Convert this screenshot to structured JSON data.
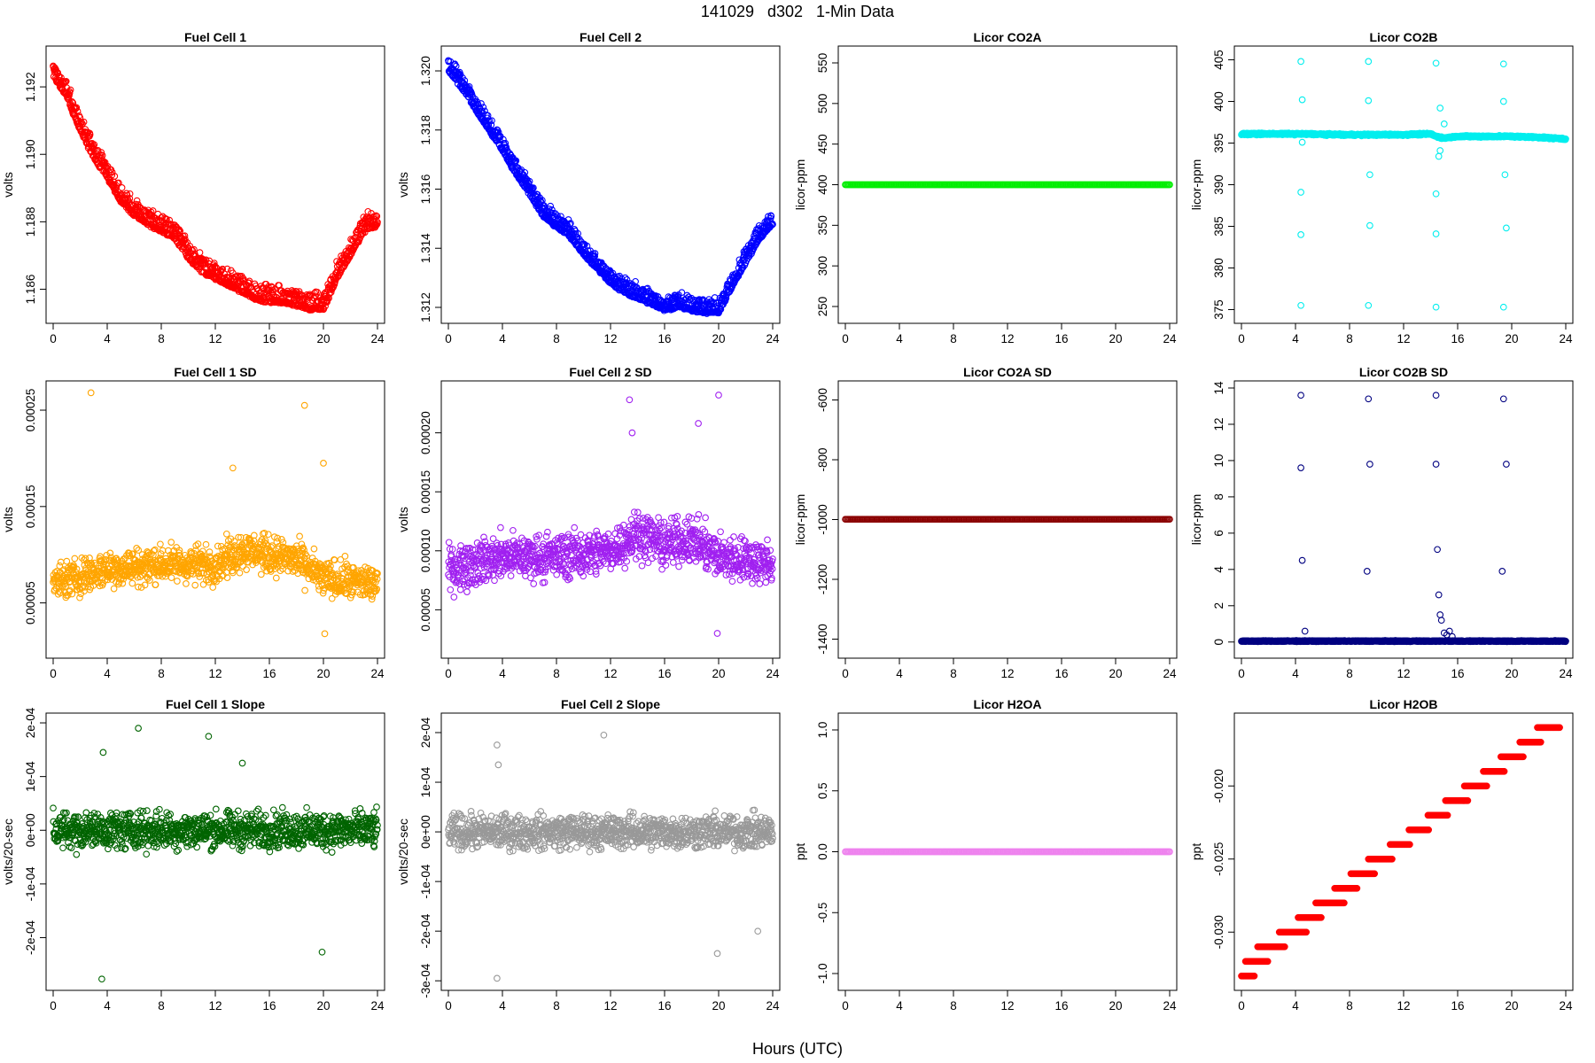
{
  "figure_title": "141029   d302   1-Min Data",
  "x_axis_title": "Hours (UTC)",
  "chart_data": [
    {
      "type": "scatter",
      "title": "Fuel Cell 1",
      "ylabel": "volts",
      "color": "#ff0000",
      "xlim": [
        0,
        24
      ],
      "ylim": [
        1.1852,
        1.193
      ],
      "x_ticks": [
        "0",
        "4",
        "8",
        "12",
        "16",
        "20",
        "24"
      ],
      "y_ticks": [
        "1.186",
        "1.188",
        "1.190",
        "1.192"
      ],
      "trend": [
        [
          0,
          1.1926
        ],
        [
          1,
          1.192
        ],
        [
          2,
          1.191
        ],
        [
          3,
          1.1902
        ],
        [
          4,
          1.1896
        ],
        [
          5,
          1.1889
        ],
        [
          6,
          1.1885
        ],
        [
          7,
          1.1882
        ],
        [
          8,
          1.188
        ],
        [
          9,
          1.1878
        ],
        [
          10,
          1.1872
        ],
        [
          11,
          1.1868
        ],
        [
          12,
          1.1866
        ],
        [
          13,
          1.1864
        ],
        [
          14,
          1.1862
        ],
        [
          15,
          1.186
        ],
        [
          16,
          1.1859
        ],
        [
          17,
          1.1859
        ],
        [
          18,
          1.1858
        ],
        [
          19,
          1.1857
        ],
        [
          20,
          1.1857
        ],
        [
          21,
          1.1866
        ],
        [
          22,
          1.1873
        ],
        [
          23,
          1.188
        ],
        [
          24,
          1.1882
        ]
      ],
      "spread": 0.0003,
      "outliers": []
    },
    {
      "type": "scatter",
      "title": "Fuel Cell 2",
      "ylabel": "volts",
      "color": "#0000ff",
      "xlim": [
        0,
        24
      ],
      "ylim": [
        1.3117,
        1.3206
      ],
      "x_ticks": [
        "0",
        "4",
        "8",
        "12",
        "16",
        "20",
        "24"
      ],
      "y_ticks": [
        "1.312",
        "1.314",
        "1.316",
        "1.318",
        "1.320"
      ],
      "trend": [
        [
          0,
          1.3203
        ],
        [
          1,
          1.3197
        ],
        [
          2,
          1.319
        ],
        [
          3,
          1.3183
        ],
        [
          4,
          1.3176
        ],
        [
          5,
          1.3168
        ],
        [
          6,
          1.3161
        ],
        [
          7,
          1.3154
        ],
        [
          8,
          1.315
        ],
        [
          9,
          1.3147
        ],
        [
          10,
          1.3141
        ],
        [
          11,
          1.3136
        ],
        [
          12,
          1.3131
        ],
        [
          13,
          1.3128
        ],
        [
          14,
          1.3126
        ],
        [
          15,
          1.3124
        ],
        [
          16,
          1.3122
        ],
        [
          17,
          1.3123
        ],
        [
          18,
          1.3122
        ],
        [
          19,
          1.3121
        ],
        [
          20,
          1.3121
        ],
        [
          21,
          1.313
        ],
        [
          22,
          1.3138
        ],
        [
          23,
          1.3146
        ],
        [
          24,
          1.3151
        ]
      ],
      "spread": 0.0003,
      "outliers": []
    },
    {
      "type": "scatter",
      "title": "Licor CO2A",
      "ylabel": "licor-ppm",
      "color": "#00ee00",
      "xlim": [
        0,
        24
      ],
      "ylim": [
        238,
        562
      ],
      "x_ticks": [
        "0",
        "4",
        "8",
        "12",
        "16",
        "20",
        "24"
      ],
      "y_ticks": [
        "250",
        "300",
        "350",
        "400",
        "450",
        "500",
        "550"
      ],
      "trend": [
        [
          0,
          400
        ],
        [
          24,
          400
        ]
      ],
      "spread": 0,
      "outliers": []
    },
    {
      "type": "scatter",
      "title": "Licor CO2B",
      "ylabel": "licor-ppm",
      "color": "#00eeee",
      "xlim": [
        0,
        24
      ],
      "ylim": [
        374.2,
        405.8
      ],
      "x_ticks": [
        "0",
        "4",
        "8",
        "12",
        "16",
        "20",
        "24"
      ],
      "y_ticks": [
        "375",
        "380",
        "385",
        "390",
        "395",
        "400",
        "405"
      ],
      "trend": [
        [
          0,
          396.1
        ],
        [
          4,
          396.1
        ],
        [
          8,
          396.0
        ],
        [
          12,
          396.0
        ],
        [
          14,
          396.1
        ],
        [
          14.4,
          395.8
        ],
        [
          15,
          395.6
        ],
        [
          16,
          395.8
        ],
        [
          20,
          395.8
        ],
        [
          22,
          395.7
        ],
        [
          24,
          395.5
        ]
      ],
      "spread": 0.15,
      "outliers": [
        [
          4.4,
          404.8
        ],
        [
          4.4,
          375.5
        ],
        [
          4.5,
          400.2
        ],
        [
          4.4,
          389.1
        ],
        [
          4.4,
          384.0
        ],
        [
          4.5,
          395.1
        ],
        [
          9.4,
          404.8
        ],
        [
          9.4,
          375.5
        ],
        [
          9.4,
          400.1
        ],
        [
          9.5,
          391.2
        ],
        [
          9.5,
          385.1
        ],
        [
          14.4,
          404.6
        ],
        [
          14.4,
          375.3
        ],
        [
          14.4,
          388.9
        ],
        [
          14.4,
          384.1
        ],
        [
          14.6,
          393.4
        ],
        [
          14.7,
          394.1
        ],
        [
          14.7,
          399.2
        ],
        [
          15.0,
          397.3
        ],
        [
          19.4,
          404.5
        ],
        [
          19.4,
          375.3
        ],
        [
          19.4,
          400.0
        ],
        [
          19.5,
          391.2
        ],
        [
          19.6,
          384.8
        ]
      ]
    },
    {
      "type": "scatter",
      "title": "Fuel Cell 1 SD",
      "ylabel": "volts",
      "color": "#ffa500",
      "xlim": [
        0,
        24
      ],
      "ylim": [
        0.0,
        0.000273
      ],
      "x_ticks": [
        "0",
        "4",
        "8",
        "12",
        "16",
        "20",
        "24"
      ],
      "y_ticks": [
        "0.00005",
        "0.00015",
        "0.00025"
      ],
      "trend": [
        [
          0,
          7e-05
        ],
        [
          4,
          8.5e-05
        ],
        [
          8,
          9e-05
        ],
        [
          12,
          9e-05
        ],
        [
          14,
          0.000105
        ],
        [
          16,
          0.0001
        ],
        [
          18,
          9.5e-05
        ],
        [
          20,
          7.5e-05
        ],
        [
          24,
          7e-05
        ]
      ],
      "spread": 2.8e-05,
      "outliers": [
        [
          2.8,
          0.000268
        ],
        [
          18.6,
          0.000255
        ],
        [
          20.0,
          0.000195
        ],
        [
          13.3,
          0.00019
        ],
        [
          20.1,
          1.8e-05
        ]
      ]
    },
    {
      "type": "scatter",
      "title": "Fuel Cell 2 SD",
      "ylabel": "volts",
      "color": "#a020f0",
      "xlim": [
        0,
        24
      ],
      "ylim": [
        1.5e-05,
        0.000238
      ],
      "x_ticks": [
        "0",
        "4",
        "8",
        "12",
        "16",
        "20",
        "24"
      ],
      "y_ticks": [
        "0.00005",
        "0.00010",
        "0.00015",
        "0.00020"
      ],
      "trend": [
        [
          0,
          8.5e-05
        ],
        [
          4,
          9.5e-05
        ],
        [
          8,
          9.5e-05
        ],
        [
          12,
          0.0001
        ],
        [
          14,
          0.000115
        ],
        [
          16,
          0.000105
        ],
        [
          18,
          0.00011
        ],
        [
          20,
          9.5e-05
        ],
        [
          24,
          9e-05
        ]
      ],
      "spread": 2.8e-05,
      "outliers": [
        [
          13.4,
          0.000228
        ],
        [
          20.0,
          0.000232
        ],
        [
          13.6,
          0.0002
        ],
        [
          18.5,
          0.000208
        ],
        [
          19.9,
          3e-05
        ]
      ]
    },
    {
      "type": "scatter",
      "title": "Licor CO2A SD",
      "ylabel": "licor-ppm",
      "color": "#8b0000",
      "xlim": [
        0,
        24
      ],
      "ylim": [
        -1440,
        -560
      ],
      "x_ticks": [
        "0",
        "4",
        "8",
        "12",
        "16",
        "20",
        "24"
      ],
      "y_ticks": [
        "-1400",
        "-1200",
        "-1000",
        "-800",
        "-600"
      ],
      "trend": [
        [
          0,
          -999
        ],
        [
          24,
          -999
        ]
      ],
      "spread": 0,
      "outliers": []
    },
    {
      "type": "scatter",
      "title": "Licor CO2B SD",
      "ylabel": "licor-ppm",
      "color": "#000080",
      "xlim": [
        0,
        24
      ],
      "ylim": [
        -0.5,
        14.0
      ],
      "x_ticks": [
        "0",
        "4",
        "8",
        "12",
        "16",
        "20",
        "24"
      ],
      "y_ticks": [
        "0",
        "2",
        "4",
        "6",
        "8",
        "10",
        "12",
        "14"
      ],
      "trend": [
        [
          0,
          0.05
        ],
        [
          24,
          0.05
        ]
      ],
      "spread": 0.04,
      "outliers": [
        [
          4.4,
          13.6
        ],
        [
          4.4,
          9.6
        ],
        [
          4.5,
          4.5
        ],
        [
          4.7,
          0.6
        ],
        [
          9.4,
          13.4
        ],
        [
          9.5,
          9.8
        ],
        [
          9.3,
          3.9
        ],
        [
          14.4,
          13.6
        ],
        [
          14.4,
          9.8
        ],
        [
          14.5,
          5.1
        ],
        [
          14.6,
          2.6
        ],
        [
          14.7,
          1.5
        ],
        [
          14.8,
          1.2
        ],
        [
          15.0,
          0.5
        ],
        [
          15.2,
          0.4
        ],
        [
          15.4,
          0.6
        ],
        [
          15.6,
          0.3
        ],
        [
          19.4,
          13.4
        ],
        [
          19.6,
          9.8
        ],
        [
          19.3,
          3.9
        ]
      ]
    },
    {
      "type": "scatter",
      "title": "Fuel Cell 1 Slope",
      "ylabel": "volts/20-sec",
      "color": "#006400",
      "xlim": [
        0,
        24
      ],
      "ylim": [
        -0.000285,
        0.000205
      ],
      "x_ticks": [
        "0",
        "4",
        "8",
        "12",
        "16",
        "20",
        "24"
      ],
      "y_ticks": [
        "-2e-04",
        "-1e-04",
        "0e+00",
        "1e-04",
        "2e-04"
      ],
      "trend": [
        [
          0,
          0.0
        ],
        [
          24,
          0.0
        ]
      ],
      "spread": 5e-05,
      "outliers": [
        [
          6.3,
          0.00019
        ],
        [
          11.5,
          0.000175
        ],
        [
          3.6,
          -0.000277
        ],
        [
          19.9,
          -0.000227
        ],
        [
          3.7,
          0.000145
        ],
        [
          14.0,
          0.000125
        ]
      ]
    },
    {
      "type": "scatter",
      "title": "Fuel Cell 2 Slope",
      "ylabel": "volts/20-sec",
      "color": "#999999",
      "xlim": [
        0,
        24
      ],
      "ylim": [
        -0.000305,
        0.000225
      ],
      "x_ticks": [
        "0",
        "4",
        "8",
        "12",
        "16",
        "20",
        "24"
      ],
      "y_ticks": [
        "-3e-04",
        "-2e-04",
        "-1e-04",
        "0e+00",
        "1e-04",
        "2e-04"
      ],
      "trend": [
        [
          0,
          0.0
        ],
        [
          24,
          0.0
        ]
      ],
      "spread": 5e-05,
      "outliers": [
        [
          11.5,
          0.000195
        ],
        [
          3.6,
          0.000175
        ],
        [
          3.6,
          -0.000295
        ],
        [
          19.9,
          -0.000245
        ],
        [
          22.9,
          -0.0002
        ],
        [
          3.7,
          0.000135
        ]
      ]
    },
    {
      "type": "scatter",
      "title": "Licor H2OA",
      "ylabel": "ppt",
      "color": "#ee82ee",
      "xlim": [
        0,
        24
      ],
      "ylim": [
        -1.08,
        1.08
      ],
      "x_ticks": [
        "0",
        "4",
        "8",
        "12",
        "16",
        "20",
        "24"
      ],
      "y_ticks": [
        "-1.0",
        "-0.5",
        "0.0",
        "0.5",
        "1.0"
      ],
      "trend": [
        [
          0,
          0.0
        ],
        [
          24,
          0.0
        ]
      ],
      "spread": 0,
      "outliers": []
    },
    {
      "type": "scatter",
      "title": "Licor H2OB",
      "ylabel": "ppt",
      "color": "#ff0000",
      "xlim": [
        0,
        24
      ],
      "ylim": [
        -0.0335,
        -0.0155
      ],
      "x_ticks": [
        "0",
        "4",
        "8",
        "12",
        "16",
        "20",
        "24"
      ],
      "y_ticks": [
        "-0.030",
        "-0.025",
        "-0.020"
      ],
      "steps": [
        [
          0,
          1,
          -0.033
        ],
        [
          0.3,
          2.0,
          -0.032
        ],
        [
          1.2,
          3.2,
          -0.031
        ],
        [
          2.8,
          4.8,
          -0.03
        ],
        [
          4.2,
          5.9,
          -0.029
        ],
        [
          5.5,
          7.6,
          -0.028
        ],
        [
          6.9,
          8.6,
          -0.027
        ],
        [
          8.1,
          9.9,
          -0.026
        ],
        [
          9.4,
          11.2,
          -0.025
        ],
        [
          11.0,
          12.5,
          -0.024
        ],
        [
          12.4,
          13.9,
          -0.023
        ],
        [
          13.8,
          15.3,
          -0.022
        ],
        [
          15.1,
          16.8,
          -0.021
        ],
        [
          16.5,
          18.2,
          -0.02
        ],
        [
          17.9,
          19.5,
          -0.019
        ],
        [
          19.2,
          20.9,
          -0.018
        ],
        [
          20.6,
          22.2,
          -0.017
        ],
        [
          21.9,
          23.6,
          -0.016
        ]
      ],
      "outliers": []
    }
  ]
}
